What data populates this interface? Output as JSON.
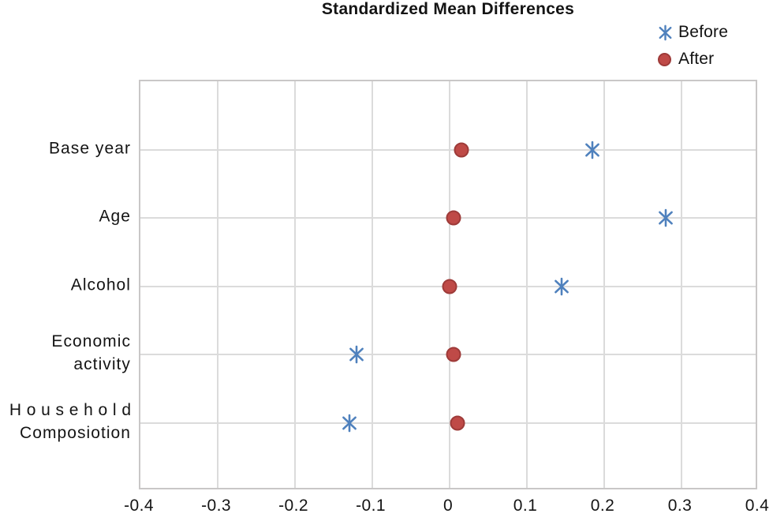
{
  "chart_data": {
    "type": "scatter",
    "title": "Standardized Mean Differences",
    "categories": [
      "Base year",
      "Age",
      "Alcohol",
      "Economic activity",
      "Household Composiotion"
    ],
    "y_axis": {
      "labels": [
        {
          "lines": [
            "Base year"
          ],
          "spaced_line_indexes": []
        },
        {
          "lines": [
            "Age"
          ],
          "spaced_line_indexes": []
        },
        {
          "lines": [
            "Alcohol"
          ],
          "spaced_line_indexes": []
        },
        {
          "lines": [
            "Economic",
            "activity"
          ],
          "spaced_line_indexes": []
        },
        {
          "lines": [
            "Household",
            "Composiotion"
          ],
          "spaced_line_indexes": [
            0
          ]
        }
      ]
    },
    "x_ticks": [
      "-0.4",
      "-0.3",
      "-0.2",
      "-0.1",
      "0",
      "0.1",
      "0.2",
      "0.3",
      "0.4"
    ],
    "xlim": [
      -0.4,
      0.4
    ],
    "grid": true,
    "legend_position": "top-right",
    "series": [
      {
        "name": "Before",
        "marker": "asterisk",
        "color": "#4f81bd",
        "values": [
          0.185,
          0.28,
          0.145,
          -0.12,
          -0.13
        ]
      },
      {
        "name": "After",
        "marker": "circle",
        "color": "#bf4a47",
        "edge_color": "#9e3b39",
        "values": [
          0.015,
          0.005,
          0,
          0.005,
          0.01
        ]
      }
    ]
  }
}
